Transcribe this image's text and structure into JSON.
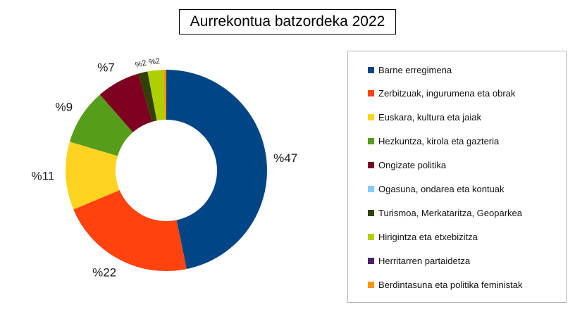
{
  "chart_data": {
    "type": "pie",
    "variant": "donut",
    "title": "Aurrekontua batzordeka 2022",
    "legend_position": "right",
    "slices": [
      {
        "name": "Barne erregimena",
        "value": 47,
        "label": "%47",
        "color": "#004586"
      },
      {
        "name": "Zerbitzuak, ingurumena eta obrak",
        "value": 22,
        "label": "%22",
        "color": "#ff420e"
      },
      {
        "name": "Euskara, kultura eta jaiak",
        "value": 11,
        "label": "%11",
        "color": "#ffd320"
      },
      {
        "name": "Hezkuntza, kirola eta gazteria",
        "value": 9,
        "label": "%9",
        "color": "#579d1c"
      },
      {
        "name": "Ongizate politika",
        "value": 7,
        "label": "%7",
        "color": "#7e0021"
      },
      {
        "name": "Ogasuna, ondarea eta kontuak",
        "value": 0,
        "label": "",
        "color": "#83caff"
      },
      {
        "name": "Turismoa, Merkataritza, Geoparkea",
        "value": 1.5,
        "label": "%2",
        "color": "#314004"
      },
      {
        "name": "Hirigintza eta etxebizitza",
        "value": 2.5,
        "label": "%2",
        "color": "#aecf00"
      },
      {
        "name": "Herritarren partaidetza",
        "value": 0,
        "label": "",
        "color": "#4b1f6f"
      },
      {
        "name": "Berdintasuna eta politika feministak",
        "value": 0.5,
        "label": "",
        "color": "#ff950e"
      }
    ]
  }
}
